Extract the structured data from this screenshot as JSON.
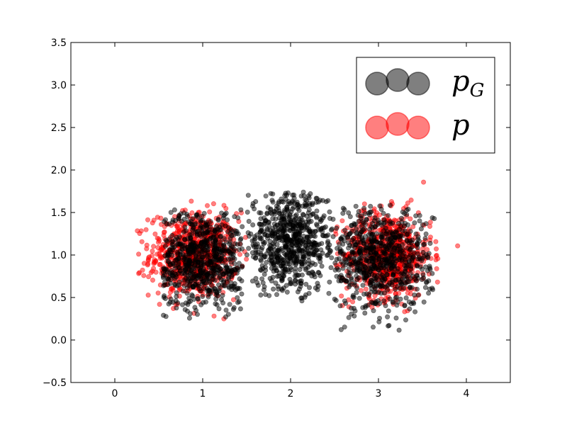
{
  "chart_data": {
    "type": "scatter",
    "xlim": [
      -0.5,
      4.5
    ],
    "ylim": [
      -0.5,
      3.5
    ],
    "x_ticks": [
      "0",
      "1",
      "2",
      "3",
      "4"
    ],
    "y_ticks": [
      "−0.5",
      "0.0",
      "0.5",
      "1.0",
      "1.5",
      "2.0",
      "2.5",
      "3.0",
      "3.5"
    ],
    "grid": false,
    "legend_position": "top-right",
    "series": [
      {
        "name": "p_G",
        "label_main": "p",
        "label_sub": "G",
        "color": "#000000",
        "alpha": 0.5,
        "clusters": [
          {
            "center": [
              1.0,
              0.95
            ],
            "spread": [
              0.28,
              0.3
            ],
            "x_range": [
              0.55,
              1.45
            ],
            "y_range": [
              0.25,
              1.55
            ]
          },
          {
            "center": [
              2.0,
              1.15
            ],
            "spread": [
              0.28,
              0.3
            ],
            "x_range": [
              1.5,
              2.5
            ],
            "y_range": [
              0.45,
              1.75
            ]
          },
          {
            "center": [
              3.0,
              0.95
            ],
            "spread": [
              0.3,
              0.3
            ],
            "x_range": [
              2.5,
              3.65
            ],
            "y_range": [
              0.1,
              1.65
            ]
          }
        ]
      },
      {
        "name": "p",
        "label_main": "p",
        "label_sub": "",
        "color": "#ff0000",
        "alpha": 0.5,
        "clusters": [
          {
            "center": [
              0.9,
              1.0
            ],
            "spread": [
              0.25,
              0.25
            ],
            "x_range": [
              0.15,
              1.5
            ],
            "y_range": [
              0.1,
              1.95
            ]
          },
          {
            "center": [
              3.1,
              1.0
            ],
            "spread": [
              0.25,
              0.25
            ],
            "x_range": [
              2.5,
              3.95
            ],
            "y_range": [
              0.1,
              2.0
            ]
          }
        ]
      }
    ]
  }
}
